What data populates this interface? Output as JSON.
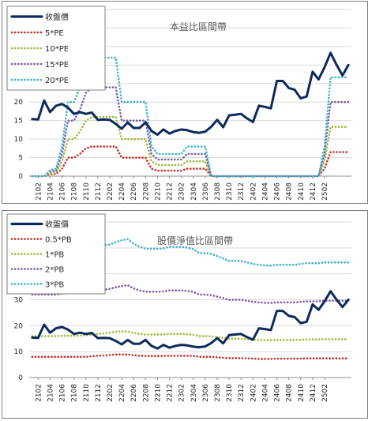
{
  "chart_data": [
    {
      "type": "line",
      "title": "本益比區間帶",
      "ylim": [
        0,
        45
      ],
      "yticks": [
        0,
        5,
        10,
        15,
        20,
        25,
        30,
        35,
        40,
        45
      ],
      "xticks": [
        "2102",
        "2104",
        "2106",
        "2108",
        "2110",
        "2112",
        "2202",
        "2204",
        "2206",
        "2208",
        "2210",
        "2212",
        "2302",
        "2304",
        "2306",
        "2308",
        "2310",
        "2312",
        "2402",
        "2404",
        "2406",
        "2408",
        "2410",
        "2412",
        "2502"
      ],
      "grid": "horizontal",
      "legend_position": "top-left",
      "series": [
        {
          "name": "收盤價",
          "color": "#0d2a5c",
          "style": "solid",
          "values": [
            15.4,
            15.3,
            20.4,
            17.3,
            19.0,
            19.5,
            18.5,
            16.8,
            17.3,
            16.8,
            17.2,
            15.2,
            15.3,
            15.2,
            14.1,
            12.8,
            14.5,
            13.0,
            13.0,
            14.5,
            12.2,
            11.2,
            12.6,
            11.5,
            12.2,
            12.6,
            12.4,
            11.9,
            11.7,
            12.0,
            13.3,
            15.2,
            13.2,
            16.4,
            16.6,
            16.8,
            15.6,
            14.6,
            19.0,
            18.7,
            18.3,
            25.7,
            25.7,
            23.8,
            23.3,
            21.0,
            21.5,
            28.2,
            26.1,
            29.4,
            33.3,
            30.1,
            27.2,
            30.0
          ]
        },
        {
          "name": "5*PE",
          "color": "#c0302a",
          "style": "dotted",
          "values": [
            0,
            0,
            0,
            0.5,
            0.6,
            2.0,
            5.0,
            5.0,
            6.0,
            7.5,
            8.0,
            8.0,
            8.0,
            8.0,
            8.0,
            5.0,
            5.0,
            5.0,
            5.0,
            5.0,
            2.0,
            1.5,
            1.5,
            1.5,
            1.5,
            1.5,
            2.0,
            2.0,
            2.0,
            2.0,
            0,
            0,
            0,
            0,
            0,
            0,
            0,
            0,
            0,
            0,
            0,
            0,
            0,
            0,
            0,
            0,
            0,
            0,
            0,
            2.0,
            6.5,
            6.5,
            6.5,
            6.5
          ]
        },
        {
          "name": "10*PE",
          "color": "#9bbb3c",
          "style": "dotted",
          "values": [
            0,
            0,
            0,
            0.8,
            1.0,
            4.0,
            10.0,
            10.0,
            12.0,
            15.0,
            16.0,
            16.0,
            16.0,
            16.0,
            16.0,
            10.0,
            10.0,
            10.0,
            10.0,
            10.0,
            4.0,
            3.0,
            3.0,
            3.0,
            3.0,
            3.0,
            4.0,
            4.0,
            4.0,
            4.0,
            0,
            0,
            0,
            0,
            0,
            0,
            0,
            0,
            0,
            0,
            0,
            0,
            0,
            0,
            0,
            0,
            0,
            0,
            0,
            4.0,
            13.3,
            13.3,
            13.3,
            13.3
          ]
        },
        {
          "name": "15*PE",
          "color": "#7b5aa6",
          "style": "dotted",
          "values": [
            0,
            0,
            0,
            1.2,
            1.5,
            6.0,
            15.0,
            15.0,
            18.0,
            22.5,
            24.0,
            24.0,
            24.0,
            24.0,
            24.0,
            15.0,
            15.0,
            15.0,
            15.0,
            15.0,
            6.0,
            4.5,
            4.5,
            4.5,
            4.5,
            4.5,
            6.0,
            6.0,
            6.0,
            6.0,
            0,
            0,
            0,
            0,
            0,
            0,
            0,
            0,
            0,
            0,
            0,
            0,
            0,
            0,
            0,
            0,
            0,
            0,
            0,
            6.0,
            20.0,
            20.0,
            20.0,
            20.0
          ]
        },
        {
          "name": "20*PE",
          "color": "#3bb0c9",
          "style": "dotted",
          "values": [
            0,
            0,
            0,
            1.6,
            2.0,
            8.0,
            20.0,
            20.0,
            24.0,
            30.0,
            32.0,
            32.0,
            32.0,
            32.0,
            32.0,
            20.0,
            20.0,
            20.0,
            20.0,
            20.0,
            8.0,
            6.0,
            6.0,
            6.0,
            6.0,
            6.0,
            8.0,
            8.0,
            8.0,
            8.0,
            0,
            0,
            0,
            0,
            0,
            0,
            0,
            0,
            0,
            0,
            0,
            0,
            0,
            0,
            0,
            0,
            0,
            0,
            0,
            8.0,
            26.7,
            26.7,
            26.7,
            26.7
          ]
        }
      ]
    },
    {
      "type": "line",
      "title": "股價淨值比區間帶",
      "ylim": [
        0,
        60
      ],
      "yticks": [
        0,
        10,
        20,
        30,
        40,
        50,
        60
      ],
      "xticks": [
        "2102",
        "2104",
        "2106",
        "2108",
        "2110",
        "2112",
        "2202",
        "2204",
        "2206",
        "2208",
        "2210",
        "2212",
        "2302",
        "2304",
        "2306",
        "2308",
        "2310",
        "2312",
        "2402",
        "2404",
        "2406",
        "2408",
        "2410",
        "2412",
        "2502"
      ],
      "grid": "horizontal",
      "legend_position": "top-left",
      "series": [
        {
          "name": "收盤價",
          "color": "#0d2a5c",
          "style": "solid",
          "values": [
            15.4,
            15.3,
            20.4,
            17.3,
            19.0,
            19.5,
            18.5,
            16.8,
            17.3,
            16.8,
            17.2,
            15.2,
            15.3,
            15.2,
            14.1,
            12.8,
            14.5,
            13.0,
            13.0,
            14.5,
            12.2,
            11.2,
            12.6,
            11.5,
            12.2,
            12.6,
            12.4,
            11.9,
            11.7,
            12.0,
            13.3,
            15.2,
            13.2,
            16.4,
            16.6,
            16.8,
            15.6,
            14.6,
            19.0,
            18.7,
            18.3,
            25.7,
            25.7,
            23.8,
            23.3,
            21.0,
            21.5,
            28.2,
            26.1,
            29.4,
            33.3,
            30.1,
            27.2,
            30.0
          ]
        },
        {
          "name": "0.5*PB",
          "color": "#c0302a",
          "style": "dotted",
          "values": [
            8.0,
            8.0,
            8.0,
            8.0,
            8.0,
            8.0,
            8.0,
            8.0,
            8.0,
            8.0,
            8.2,
            8.4,
            8.5,
            8.7,
            8.9,
            8.9,
            8.9,
            8.6,
            8.4,
            8.3,
            8.3,
            8.3,
            8.3,
            8.4,
            8.4,
            8.4,
            8.4,
            8.3,
            8.0,
            8.0,
            8.0,
            7.8,
            7.6,
            7.5,
            7.5,
            7.5,
            7.4,
            7.3,
            7.2,
            7.2,
            7.2,
            7.3,
            7.3,
            7.3,
            7.3,
            7.3,
            7.4,
            7.4,
            7.4,
            7.4,
            7.4,
            7.4,
            7.4,
            7.4
          ]
        },
        {
          "name": "1*PB",
          "color": "#9bbb3c",
          "style": "dotted",
          "values": [
            16.0,
            16.0,
            16.0,
            16.0,
            16.0,
            16.1,
            16.1,
            16.1,
            16.2,
            16.3,
            16.5,
            16.8,
            17.0,
            17.3,
            17.7,
            17.8,
            17.8,
            17.2,
            16.8,
            16.6,
            16.6,
            16.6,
            16.6,
            16.8,
            16.8,
            16.8,
            16.7,
            16.5,
            16.0,
            16.0,
            15.9,
            15.6,
            15.3,
            15.0,
            15.0,
            15.0,
            14.8,
            14.6,
            14.5,
            14.4,
            14.4,
            14.5,
            14.5,
            14.5,
            14.5,
            14.6,
            14.7,
            14.7,
            14.7,
            14.8,
            14.8,
            14.8,
            14.8,
            14.8
          ]
        },
        {
          "name": "2*PB",
          "color": "#7b5aa6",
          "style": "dotted",
          "values": [
            32.0,
            32.0,
            32.0,
            32.0,
            32.0,
            32.3,
            32.6,
            32.8,
            33.2,
            33.6,
            33.8,
            33.8,
            33.8,
            34.2,
            34.8,
            35.3,
            35.6,
            34.4,
            33.6,
            33.1,
            33.1,
            33.1,
            33.2,
            33.6,
            33.6,
            33.6,
            33.4,
            33.0,
            32.0,
            32.0,
            31.8,
            31.2,
            30.6,
            30.0,
            30.0,
            30.0,
            29.6,
            29.2,
            29.0,
            28.8,
            28.8,
            29.0,
            29.0,
            29.0,
            29.0,
            29.2,
            29.4,
            29.4,
            29.4,
            29.6,
            29.6,
            29.6,
            29.6,
            29.6
          ]
        },
        {
          "name": "3*PB",
          "color": "#3bb0c9",
          "style": "dotted",
          "values": [
            48.0,
            48.0,
            48.0,
            48.0,
            48.0,
            48.4,
            48.9,
            49.2,
            49.8,
            50.4,
            50.7,
            50.7,
            51.0,
            51.3,
            52.2,
            52.9,
            53.4,
            51.6,
            50.4,
            49.7,
            49.7,
            49.7,
            49.8,
            50.4,
            50.4,
            50.4,
            50.1,
            49.5,
            48.0,
            48.0,
            47.7,
            46.8,
            45.9,
            45.0,
            45.0,
            45.0,
            44.4,
            43.8,
            43.5,
            43.2,
            43.2,
            43.5,
            43.5,
            43.5,
            43.5,
            43.8,
            44.1,
            44.1,
            44.1,
            44.4,
            44.4,
            44.4,
            44.4,
            44.4
          ]
        }
      ]
    }
  ]
}
